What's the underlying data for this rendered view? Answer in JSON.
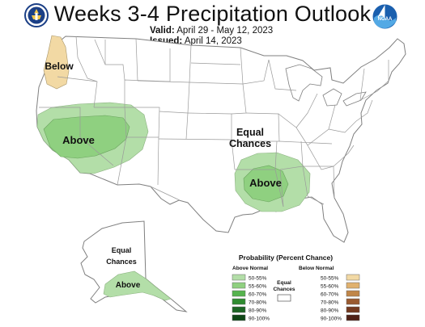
{
  "header": {
    "title": "Weeks 3-4 Precipitation Outlook",
    "valid_label": "Valid:",
    "valid_value": "April 29 - May 12, 2023",
    "issued_label": "Issued:",
    "issued_value": "April 14, 2023"
  },
  "logos": {
    "left": "commerce-seal-icon",
    "right": "noaa-logo-icon",
    "right_text": "NOAA"
  },
  "map_labels": {
    "pacific_nw": "Below",
    "west": "Above",
    "central_equal_1": "Equal",
    "central_equal_2": "Chances",
    "mid_south": "Above",
    "alaska_equal_1": "Equal",
    "alaska_equal_2": "Chances",
    "alaska_above": "Above"
  },
  "legend": {
    "title": "Probability (Percent Chance)",
    "above_header": "Above Normal",
    "below_header": "Below Normal",
    "equal_label_1": "Equal",
    "equal_label_2": "Chances",
    "ranges": [
      "50-55%",
      "55-60%",
      "60-70%",
      "70-80%",
      "80-90%",
      "90-100%"
    ],
    "above_colors": [
      "#b3dea8",
      "#8fd080",
      "#55b34d",
      "#2f8c30",
      "#1c6624",
      "#0e4716"
    ],
    "below_colors": [
      "#f2d9a4",
      "#e0b16e",
      "#c08648",
      "#9a5a30",
      "#74391f",
      "#4f2116"
    ]
  },
  "colors": {
    "land_outline": "#7f7f7f",
    "state_lines": "#9a9a9a",
    "water": "#ffffff"
  }
}
